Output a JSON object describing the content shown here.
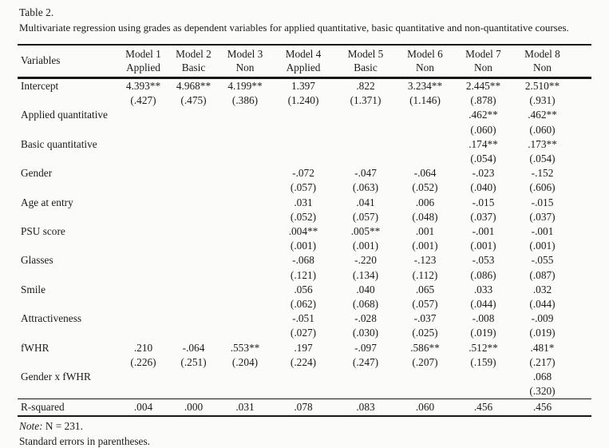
{
  "title": "Table 2.",
  "subtitle": "Multivariate regression using grades as dependent variables for applied quantitative, basic quantitative and non-quantitative courses.",
  "table": {
    "variables_header": "Variables",
    "columns": [
      {
        "line1": "Model 1",
        "line2": "Applied"
      },
      {
        "line1": "Model 2",
        "line2": "Basic"
      },
      {
        "line1": "Model 3",
        "line2": "Non"
      },
      {
        "line1": "Model 4",
        "line2": "Applied"
      },
      {
        "line1": "Model 5",
        "line2": "Basic"
      },
      {
        "line1": "Model 6",
        "line2": "Non"
      },
      {
        "line1": "Model 7",
        "line2": "Non"
      },
      {
        "line1": "Model 8",
        "line2": "Non"
      }
    ],
    "rows": [
      {
        "label": "Intercept",
        "coef": [
          "4.393**",
          "4.968**",
          "4.199**",
          "1.397",
          ".822",
          "3.234**",
          "2.445**",
          "2.510**"
        ],
        "se": [
          "(.427)",
          "(.475)",
          "(.386)",
          "(1.240)",
          "(1.371)",
          "(1.146)",
          "(.878)",
          "(.931)"
        ]
      },
      {
        "label": "Applied quantitative",
        "coef": [
          "",
          "",
          "",
          "",
          "",
          "",
          ".462**",
          ".462**"
        ],
        "se": [
          "",
          "",
          "",
          "",
          "",
          "",
          "(.060)",
          "(.060)"
        ]
      },
      {
        "label": "Basic quantitative",
        "coef": [
          "",
          "",
          "",
          "",
          "",
          "",
          ".174**",
          ".173**"
        ],
        "se": [
          "",
          "",
          "",
          "",
          "",
          "",
          "(.054)",
          "(.054)"
        ]
      },
      {
        "label": "Gender",
        "coef": [
          "",
          "",
          "",
          "-.072",
          "-.047",
          "-.064",
          "-.023",
          "-.152"
        ],
        "se": [
          "",
          "",
          "",
          "(.057)",
          "(.063)",
          "(.052)",
          "(.040)",
          "(.606)"
        ]
      },
      {
        "label": "Age at entry",
        "coef": [
          "",
          "",
          "",
          ".031",
          ".041",
          ".006",
          "-.015",
          "-.015"
        ],
        "se": [
          "",
          "",
          "",
          "(.052)",
          "(.057)",
          "(.048)",
          "(.037)",
          "(.037)"
        ]
      },
      {
        "label": "PSU score",
        "coef": [
          "",
          "",
          "",
          ".004**",
          ".005**",
          ".001",
          "-.001",
          "-.001"
        ],
        "se": [
          "",
          "",
          "",
          "(.001)",
          "(.001)",
          "(.001)",
          "(.001)",
          "(.001)"
        ]
      },
      {
        "label": "Glasses",
        "coef": [
          "",
          "",
          "",
          "-.068",
          "-.220",
          "-.123",
          "-.053",
          "-.055"
        ],
        "se": [
          "",
          "",
          "",
          "(.121)",
          "(.134)",
          "(.112)",
          "(.086)",
          "(.087)"
        ]
      },
      {
        "label": "Smile",
        "coef": [
          "",
          "",
          "",
          ".056",
          ".040",
          ".065",
          ".033",
          ".032"
        ],
        "se": [
          "",
          "",
          "",
          "(.062)",
          "(.068)",
          "(.057)",
          "(.044)",
          "(.044)"
        ]
      },
      {
        "label": "Attractiveness",
        "coef": [
          "",
          "",
          "",
          "-.051",
          "-.028",
          "-.037",
          "-.008",
          "-.009"
        ],
        "se": [
          "",
          "",
          "",
          "(.027)",
          "(.030)",
          "(.025)",
          "(.019)",
          "(.019)"
        ]
      },
      {
        "label": "fWHR",
        "coef": [
          ".210",
          "-.064",
          ".553**",
          ".197",
          "-.097",
          ".586**",
          ".512**",
          ".481*"
        ],
        "se": [
          "(.226)",
          "(.251)",
          "(.204)",
          "(.224)",
          "(.247)",
          "(.207)",
          "(.159)",
          "(.217)"
        ]
      },
      {
        "label": "Gender x fWHR",
        "coef": [
          "",
          "",
          "",
          "",
          "",
          "",
          "",
          ".068"
        ],
        "se": [
          "",
          "",
          "",
          "",
          "",
          "",
          "",
          "(.320)"
        ]
      }
    ],
    "r_squared": {
      "label": "R-squared",
      "values": [
        ".004",
        ".000",
        ".031",
        ".078",
        ".083",
        ".060",
        ".456",
        ".456"
      ]
    }
  },
  "notes": {
    "note_label": "Note:",
    "note_text": "N = 231.",
    "se_note": "Standard errors in parentheses."
  }
}
